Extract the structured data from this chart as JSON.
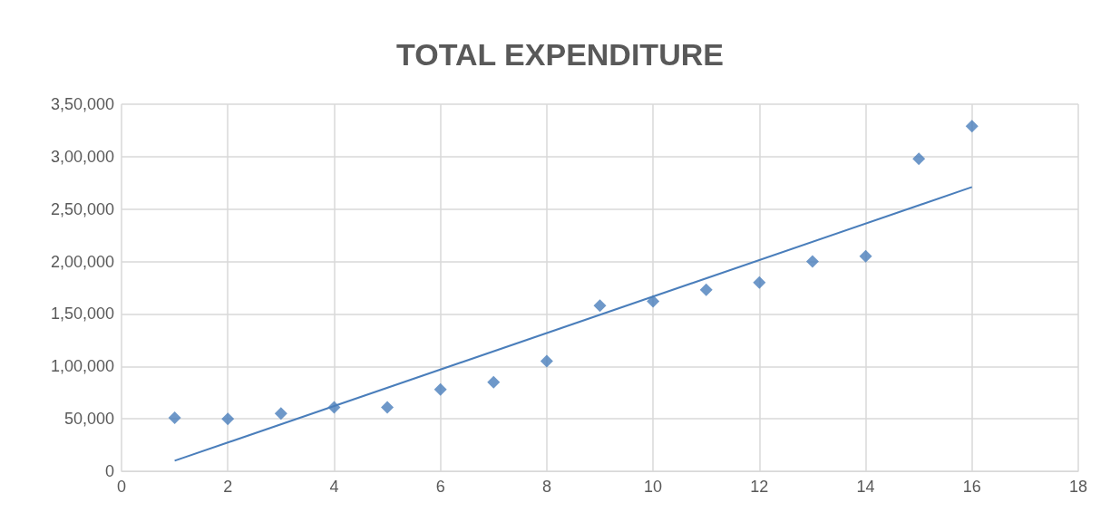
{
  "chart_data": {
    "type": "scatter",
    "title": "TOTAL EXPENDITURE",
    "x": [
      1,
      2,
      3,
      4,
      5,
      6,
      7,
      8,
      9,
      10,
      11,
      12,
      13,
      14,
      15,
      16
    ],
    "series": [
      {
        "color": "#4a7ebb",
        "values": [
          51000,
          50000,
          55000,
          61000,
          61000,
          78000,
          85000,
          105000,
          158000,
          162000,
          173000,
          180000,
          200000,
          205000,
          298000,
          329000
        ]
      },
      {
        "type": "line",
        "marker": "none",
        "color": "#4a7ebb",
        "x": [
          1,
          16
        ],
        "values": [
          10000,
          271000
        ]
      }
    ],
    "xlim": [
      0,
      18
    ],
    "xticks": [
      0,
      2,
      4,
      6,
      8,
      10,
      12,
      14,
      16,
      18
    ],
    "ylim": [
      0,
      350000
    ],
    "yticks": [
      0,
      {
        "value": 50000,
        "label": "50,000"
      },
      {
        "value": 100000,
        "label": "1,00,000"
      },
      {
        "value": 150000,
        "label": "1,50,000"
      },
      {
        "value": 200000,
        "label": "2,00,000"
      },
      {
        "value": 250000,
        "label": "2,50,000"
      },
      {
        "value": 300000,
        "label": "3,00,000"
      },
      {
        "value": 350000,
        "label": "3,50,000"
      }
    ],
    "grid": true,
    "marker": "diamond"
  }
}
